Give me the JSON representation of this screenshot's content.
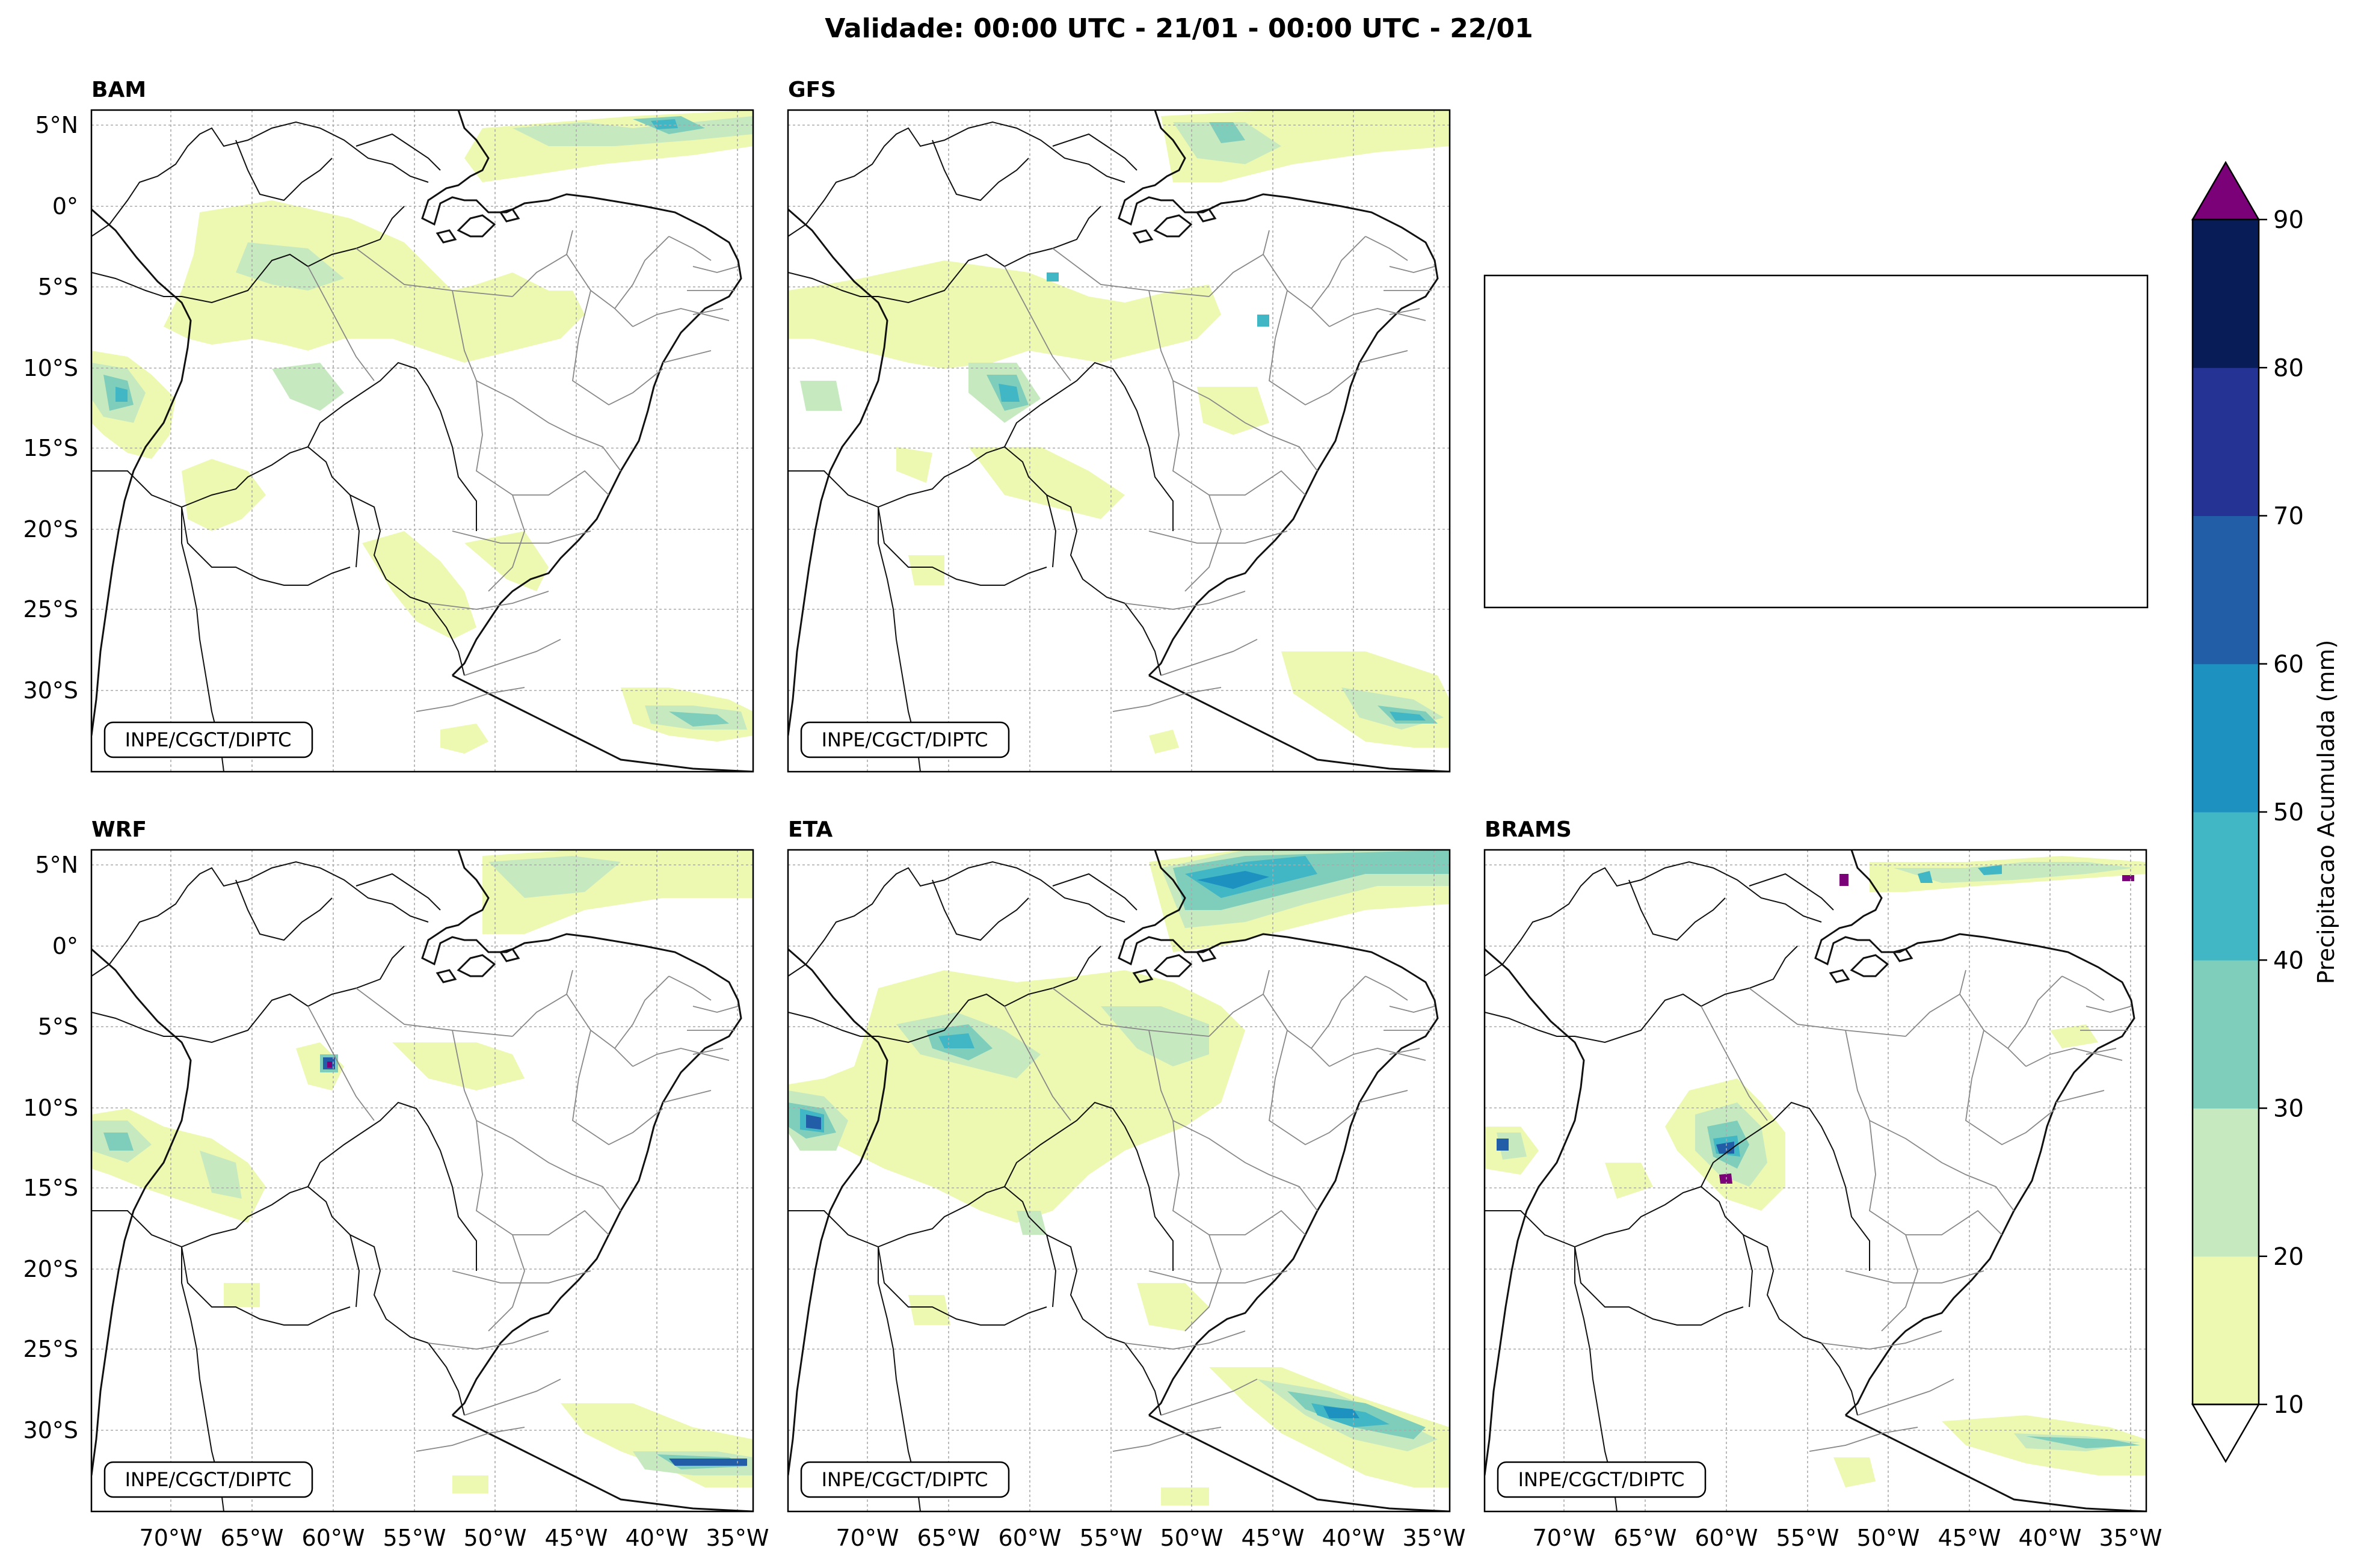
{
  "figure": {
    "title": "Validade: 00:00 UTC - 21/01 - 00:00 UTC - 22/01",
    "credit": "INPE/CGCT/DIPTC"
  },
  "axes": {
    "lat_ticks": [
      "5°N",
      "0°",
      "5°S",
      "10°S",
      "15°S",
      "20°S",
      "25°S",
      "30°S"
    ],
    "lon_ticks": [
      "70°W",
      "65°W",
      "60°W",
      "55°W",
      "50°W",
      "45°W",
      "40°W",
      "35°W"
    ],
    "lat_range": [
      -35,
      6
    ],
    "lon_range": [
      -74,
      -33
    ]
  },
  "panels": [
    {
      "id": "bam",
      "label": "BAM",
      "has_map": true,
      "show_credit": true
    },
    {
      "id": "gfs",
      "label": "GFS",
      "has_map": true,
      "show_credit": true
    },
    {
      "id": "empty",
      "label": "",
      "has_map": false,
      "show_credit": false
    },
    {
      "id": "wrf",
      "label": "WRF",
      "has_map": true,
      "show_credit": true
    },
    {
      "id": "eta",
      "label": "ETA",
      "has_map": true,
      "show_credit": true
    },
    {
      "id": "brams",
      "label": "BRAMS",
      "has_map": true,
      "show_credit": true
    }
  ],
  "colorbar": {
    "label": "Precipitacao Acumulada (mm)",
    "ticks": [
      "10",
      "20",
      "30",
      "40",
      "50",
      "60",
      "70",
      "80",
      "90"
    ],
    "levels": [
      10,
      20,
      30,
      40,
      50,
      60,
      70,
      80,
      90
    ],
    "colors": [
      "#edf8b1",
      "#c7e9c0",
      "#7fcdbb",
      "#41b6c4",
      "#1d91c0",
      "#225ea8",
      "#253494",
      "#081d58"
    ],
    "extend_max_color": "#7a0177",
    "extend_min_color": "#ffffff"
  }
}
